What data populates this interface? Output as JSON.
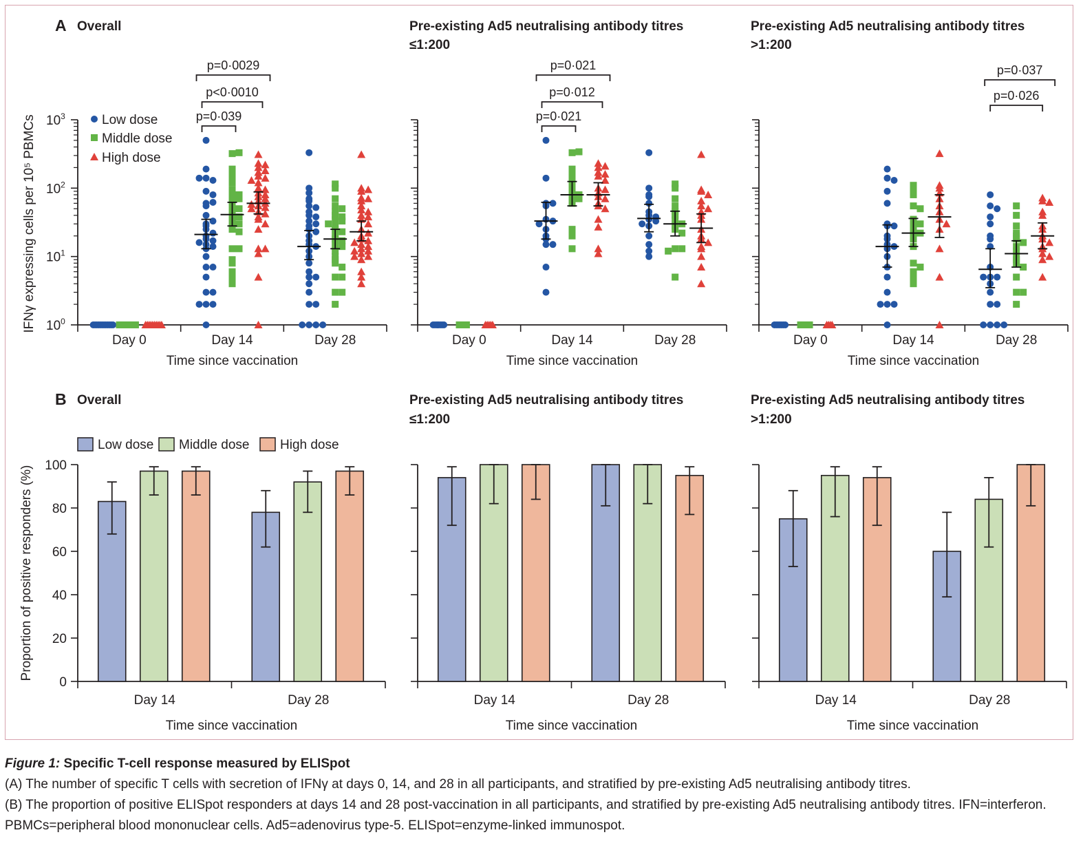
{
  "colors": {
    "low_marker": "#2456a4",
    "middle_marker": "#62b446",
    "high_marker": "#e0413a",
    "low_bar": "#a0aed4",
    "middle_bar": "#cbdfb7",
    "high_bar": "#efb79c",
    "frame": "#d7a3ae"
  },
  "legend": {
    "low": "Low dose",
    "middle": "Middle dose",
    "high": "High dose"
  },
  "panel_a": {
    "letter": "A",
    "ylabel": "IFNγ expressing cells per 10⁵ PBMCs",
    "xlabel": "Time since vaccination",
    "yticks": [
      "10⁰",
      "10¹",
      "10²",
      "10³"
    ]
  },
  "panel_b": {
    "letter": "B",
    "ylabel": "Proportion of positive responders (%)",
    "xlabel": "Time since vaccination",
    "yticks": [
      "0",
      "20",
      "40",
      "60",
      "80",
      "100"
    ]
  },
  "caption": {
    "figure_label": "Figure 1:",
    "title": "Specific T-cell response measured by ELISpot",
    "line_a": "(A) The number of specific T cells with secretion of IFNγ at days 0, 14, and 28 in all participants, and stratified by pre-existing Ad5 neutralising antibody titres.",
    "line_b": "(B) The proportion of positive ELISpot responders at days 14 and 28 post-vaccination in all participants, and stratified by pre-existing Ad5 neutralising antibody titres. IFN=interferon. PBMCs=peripheral blood mononuclear cells. Ad5=adenovirus type-5. ELISpot=enzyme-linked immunospot."
  },
  "chart_data": [
    {
      "id": "A1",
      "type": "scatter",
      "title": "Overall",
      "subtitle": "",
      "xlabel": "Time since vaccination",
      "ylabel": "IFNγ expressing cells per 10⁵ PBMCs",
      "yscale": "log",
      "ylim": [
        1,
        1000
      ],
      "categories": [
        "Day 0",
        "Day 14",
        "Day 28"
      ],
      "legend": "top-left",
      "series": [
        {
          "name": "Low dose",
          "marker": "circle",
          "values": [
            [
              1,
              1,
              1,
              1,
              1,
              1,
              1,
              1,
              1,
              1,
              1,
              1
            ],
            [
              500,
              190,
              140,
              130,
              140,
              90,
              80,
              60,
              55,
              62,
              40,
              30,
              28,
              33,
              25,
              22,
              20,
              18,
              17,
              16,
              15,
              14,
              13,
              10,
              7,
              7,
              5,
              3,
              3,
              2,
              2,
              2,
              1
            ],
            [
              330,
              100,
              85,
              70,
              65,
              55,
              52,
              45,
              40,
              38,
              33,
              30,
              28,
              25,
              23,
              20,
              17,
              15,
              14,
              12,
              10,
              8,
              6,
              5,
              5,
              4,
              3,
              2,
              2,
              1,
              1,
              1,
              1
            ]
          ],
          "median": [
            null,
            21,
            14
          ],
          "ci": [
            null,
            [
              13,
              35
            ],
            [
              9,
              24
            ]
          ]
        },
        {
          "name": "Middle dose",
          "marker": "square",
          "values": [
            [
              1,
              1,
              1,
              1,
              1,
              1,
              1,
              1,
              1,
              1
            ],
            [
              320,
              330,
              190,
              160,
              130,
              120,
              95,
              85,
              80,
              75,
              70,
              62,
              55,
              50,
              45,
              40,
              38,
              33,
              30,
              28,
              25,
              23,
              13,
              13,
              9,
              8,
              6,
              5,
              4
            ],
            [
              115,
              100,
              70,
              55,
              50,
              45,
              40,
              38,
              35,
              33,
              30,
              28,
              25,
              23,
              20,
              18,
              17,
              15,
              14,
              12,
              10,
              9,
              8,
              7,
              5,
              5,
              3,
              3,
              2
            ]
          ],
          "median": [
            null,
            41,
            18
          ],
          "ci": [
            null,
            [
              28,
              62
            ],
            [
              13,
              25
            ]
          ]
        },
        {
          "name": "High dose",
          "marker": "triangle",
          "values": [
            [
              1,
              1,
              1,
              1,
              1,
              1,
              1,
              1,
              1,
              1
            ],
            [
              310,
              230,
              200,
              220,
              180,
              170,
              150,
              140,
              130,
              120,
              100,
              95,
              85,
              80,
              75,
              70,
              65,
              60,
              58,
              55,
              52,
              50,
              45,
              42,
              38,
              35,
              30,
              25,
              13,
              13,
              11,
              5,
              1
            ],
            [
              310,
              100,
              95,
              90,
              72,
              70,
              65,
              55,
              48,
              45,
              40,
              38,
              35,
              30,
              25,
              22,
              20,
              18,
              17,
              16,
              15,
              14,
              13,
              12,
              12,
              11,
              10,
              10,
              9,
              6,
              5,
              4
            ]
          ],
          "median": [
            null,
            60,
            23
          ],
          "ci": [
            null,
            [
              42,
              88
            ],
            [
              17,
              33
            ]
          ]
        }
      ],
      "annotations": [
        {
          "text": "p=0·039",
          "from": "Day 14 Low dose",
          "to": "Day 14 Middle dose"
        },
        {
          "text": "p<0·0010",
          "from": "Day 14 Low dose",
          "to": "Day 14 High dose"
        },
        {
          "text": "p=0·0029",
          "from": "Day 14 Low dose",
          "to": "Day 14 High dose (outer)"
        }
      ]
    },
    {
      "id": "A2",
      "type": "scatter",
      "title": "Pre-existing Ad5 neutralising antibody titres",
      "subtitle": "≤1:200",
      "xlabel": "Time since vaccination",
      "ylabel": "",
      "yscale": "log",
      "ylim": [
        1,
        1000
      ],
      "categories": [
        "Day 0",
        "Day 14",
        "Day 28"
      ],
      "series": [
        {
          "name": "Low dose",
          "marker": "circle",
          "values": [
            [
              1,
              1,
              1,
              1,
              1,
              1,
              1
            ],
            [
              500,
              140,
              60,
              60,
              55,
              35,
              33,
              30,
              25,
              20,
              18,
              15,
              15,
              7,
              3
            ],
            [
              330,
              100,
              80,
              75,
              60,
              45,
              40,
              38,
              35,
              33,
              30,
              28,
              20,
              15,
              12,
              10
            ]
          ],
          "median": [
            null,
            33,
            36
          ],
          "ci": [
            null,
            [
              18,
              62
            ],
            [
              23,
              58
            ]
          ]
        },
        {
          "name": "Middle dose",
          "marker": "square",
          "values": [
            [
              1,
              1,
              1,
              1,
              1
            ],
            [
              330,
              340,
              190,
              160,
              130,
              120,
              100,
              85,
              80,
              75,
              70,
              60,
              25,
              20,
              13
            ],
            [
              115,
              100,
              70,
              55,
              45,
              40,
              35,
              30,
              28,
              25,
              22,
              13,
              13,
              12,
              5
            ]
          ],
          "median": [
            null,
            80,
            30
          ],
          "ci": [
            null,
            [
              55,
              125
            ],
            [
              20,
              46
            ]
          ]
        },
        {
          "name": "High dose",
          "marker": "triangle",
          "values": [
            [
              1,
              1,
              1,
              1,
              1
            ],
            [
              230,
              200,
              210,
              170,
              150,
              160,
              130,
              100,
              95,
              85,
              75,
              70,
              60,
              55,
              50,
              35,
              27,
              13,
              11
            ],
            [
              310,
              95,
              90,
              80,
              65,
              55,
              50,
              45,
              40,
              35,
              25,
              20,
              18,
              16,
              14,
              13,
              10,
              7,
              4
            ]
          ],
          "median": [
            null,
            80,
            26
          ],
          "ci": [
            null,
            [
              55,
              120
            ],
            [
              16,
              42
            ]
          ]
        }
      ],
      "annotations": [
        {
          "text": "p=0·021",
          "from": "Day 14 Low dose",
          "to": "Day 14 Middle dose"
        },
        {
          "text": "p=0·012",
          "from": "Day 14 Low dose",
          "to": "Day 14 High dose"
        },
        {
          "text": "p=0·021",
          "from": "Day 14 Low dose",
          "to": "Day 14 High dose (outer)"
        }
      ]
    },
    {
      "id": "A3",
      "type": "scatter",
      "title": "Pre-existing Ad5 neutralising antibody titres",
      "subtitle": ">1:200",
      "xlabel": "Time since vaccination",
      "ylabel": "",
      "yscale": "log",
      "ylim": [
        1,
        1000
      ],
      "categories": [
        "Day 0",
        "Day 14",
        "Day 28"
      ],
      "series": [
        {
          "name": "Low dose",
          "marker": "circle",
          "values": [
            [
              1,
              1,
              1,
              1,
              1,
              1,
              1
            ],
            [
              190,
              140,
              130,
              90,
              60,
              30,
              28,
              28,
              20,
              18,
              15,
              14,
              13,
              10,
              7,
              5,
              3,
              2,
              2,
              2,
              1
            ],
            [
              80,
              55,
              50,
              38,
              30,
              20,
              18,
              14,
              7,
              5,
              5,
              5,
              4,
              3,
              2,
              2,
              1,
              1,
              1,
              1
            ]
          ],
          "median": [
            null,
            14,
            6.5
          ],
          "ci": [
            null,
            [
              7,
              29
            ],
            [
              3.5,
              13
            ]
          ]
        },
        {
          "name": "Middle dose",
          "marker": "square",
          "values": [
            [
              1,
              1,
              1,
              1,
              1,
              1
            ],
            [
              110,
              100,
              80,
              55,
              50,
              35,
              30,
              28,
              25,
              22,
              20,
              18,
              14,
              8,
              7,
              6,
              5,
              4
            ],
            [
              55,
              40,
              28,
              22,
              20,
              18,
              16,
              14,
              12,
              10,
              9,
              8,
              7,
              5,
              3,
              3,
              2
            ]
          ],
          "median": [
            null,
            22,
            11
          ],
          "ci": [
            null,
            [
              14,
              36
            ],
            [
              7,
              17
            ]
          ]
        },
        {
          "name": "High dose",
          "marker": "triangle",
          "values": [
            [
              1,
              1,
              1,
              1
            ],
            [
              320,
              110,
              100,
              85,
              70,
              55,
              45,
              35,
              30,
              25,
              13,
              5,
              1
            ],
            [
              72,
              65,
              62,
              45,
              40,
              28,
              25,
              20,
              18,
              16,
              14,
              13,
              11,
              10,
              9,
              5
            ]
          ],
          "median": [
            null,
            38,
            20
          ],
          "ci": [
            null,
            [
              19,
              80
            ],
            [
              13,
              31
            ]
          ]
        }
      ],
      "annotations": [
        {
          "text": "p=0·026",
          "from": "Day 28 Low dose",
          "to": "Day 28 High dose"
        },
        {
          "text": "p=0·037",
          "from": "Day 28 Low dose",
          "to": "Day 28 High dose (outer)"
        }
      ]
    },
    {
      "id": "B1",
      "type": "bar",
      "title": "Overall",
      "subtitle": "",
      "xlabel": "Time since vaccination",
      "ylabel": "Proportion of positive responders (%)",
      "ylim": [
        0,
        100
      ],
      "categories": [
        "Day 14",
        "Day 28"
      ],
      "legend": "top",
      "series": [
        {
          "name": "Low dose",
          "values": [
            83,
            78
          ],
          "err_low": [
            68,
            62
          ],
          "err_high": [
            92,
            88
          ]
        },
        {
          "name": "Middle dose",
          "values": [
            97,
            92
          ],
          "err_low": [
            86,
            78
          ],
          "err_high": [
            99,
            97
          ]
        },
        {
          "name": "High dose",
          "values": [
            97,
            97
          ],
          "err_low": [
            86,
            86
          ],
          "err_high": [
            99,
            99
          ]
        }
      ]
    },
    {
      "id": "B2",
      "type": "bar",
      "title": "Pre-existing Ad5 neutralising antibody titres",
      "subtitle": "≤1:200",
      "xlabel": "Time since vaccination",
      "ylabel": "",
      "ylim": [
        0,
        100
      ],
      "categories": [
        "Day 14",
        "Day 28"
      ],
      "series": [
        {
          "name": "Low dose",
          "values": [
            94,
            100
          ],
          "err_low": [
            72,
            81
          ],
          "err_high": [
            99,
            100
          ]
        },
        {
          "name": "Middle dose",
          "values": [
            100,
            100
          ],
          "err_low": [
            82,
            82
          ],
          "err_high": [
            100,
            100
          ]
        },
        {
          "name": "High dose",
          "values": [
            100,
            95
          ],
          "err_low": [
            84,
            77
          ],
          "err_high": [
            100,
            99
          ]
        }
      ]
    },
    {
      "id": "B3",
      "type": "bar",
      "title": "Pre-existing Ad5 neutralising antibody titres",
      "subtitle": ">1:200",
      "xlabel": "Time since vaccination",
      "ylabel": "",
      "ylim": [
        0,
        100
      ],
      "categories": [
        "Day 14",
        "Day 28"
      ],
      "series": [
        {
          "name": "Low dose",
          "values": [
            75,
            60
          ],
          "err_low": [
            53,
            39
          ],
          "err_high": [
            88,
            78
          ]
        },
        {
          "name": "Middle dose",
          "values": [
            95,
            84
          ],
          "err_low": [
            76,
            62
          ],
          "err_high": [
            99,
            94
          ]
        },
        {
          "name": "High dose",
          "values": [
            94,
            100
          ],
          "err_low": [
            72,
            81
          ],
          "err_high": [
            99,
            100
          ]
        }
      ]
    }
  ]
}
